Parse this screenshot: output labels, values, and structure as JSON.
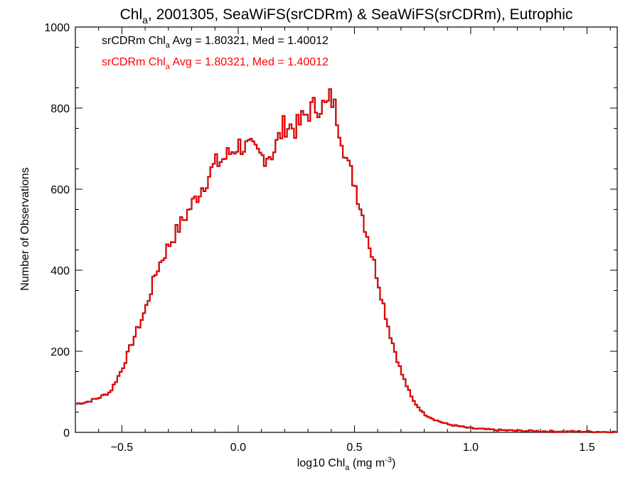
{
  "title": {
    "main": "Chl",
    "sub": "a",
    "rest": ", 2001305, SeaWiFS(srCDRm) & SeaWiFS(srCDRm), Eutrophic"
  },
  "xlabel": {
    "pre": "log10 Chl",
    "sub": "a",
    "post": " (mg m",
    "sup": "-3",
    "end": ")"
  },
  "ylabel": "Number of Observations",
  "legend": [
    {
      "pre": "srCDRm Chl",
      "sub": "a",
      "post": " Avg = 1.80321, Med = 1.40012",
      "color": "#000000"
    },
    {
      "pre": "srCDRm Chl",
      "sub": "a",
      "post": " Avg = 1.80321, Med = 1.40012",
      "color": "#ff0000"
    }
  ],
  "chart_data": {
    "type": "line",
    "style": "step histogram",
    "xlim": [
      -0.7,
      1.63
    ],
    "ylim": [
      0,
      1000
    ],
    "x_ticks": [
      "−0.5",
      "0.0",
      "0.5",
      "1.0",
      "1.5"
    ],
    "x_tick_values": [
      -0.5,
      0.0,
      0.5,
      1.0,
      1.5
    ],
    "y_ticks": [
      "0",
      "200",
      "400",
      "600",
      "800",
      "1000"
    ],
    "y_tick_values": [
      0,
      200,
      400,
      600,
      800,
      1000
    ],
    "grid": false,
    "legend_placement": "top-left",
    "series": [
      {
        "color": "#000000",
        "x": [
          -0.7,
          -0.65,
          -0.6,
          -0.55,
          -0.5,
          -0.45,
          -0.4,
          -0.35,
          -0.3,
          -0.25,
          -0.2,
          -0.15,
          -0.1,
          -0.05,
          0.0,
          0.05,
          0.1,
          0.15,
          0.2,
          0.25,
          0.3,
          0.35,
          0.38,
          0.4,
          0.42,
          0.45,
          0.47,
          0.5,
          0.55,
          0.6,
          0.65,
          0.7,
          0.75,
          0.8,
          0.85,
          0.9,
          0.95,
          1.0,
          1.1,
          1.2,
          1.3,
          1.4,
          1.5,
          1.6
        ],
        "y": [
          70,
          75,
          85,
          100,
          155,
          230,
          300,
          400,
          460,
          510,
          560,
          610,
          660,
          680,
          710,
          700,
          680,
          690,
          760,
          750,
          790,
          810,
          800,
          830,
          790,
          720,
          660,
          620,
          500,
          380,
          250,
          150,
          80,
          45,
          30,
          20,
          15,
          10,
          6,
          4,
          3,
          2,
          2,
          1
        ]
      },
      {
        "color": "#ff0000",
        "x": [
          -0.7,
          -0.65,
          -0.6,
          -0.55,
          -0.5,
          -0.45,
          -0.4,
          -0.35,
          -0.3,
          -0.25,
          -0.2,
          -0.15,
          -0.1,
          -0.05,
          0.0,
          0.05,
          0.1,
          0.15,
          0.2,
          0.25,
          0.3,
          0.35,
          0.38,
          0.4,
          0.42,
          0.45,
          0.47,
          0.5,
          0.55,
          0.6,
          0.65,
          0.7,
          0.75,
          0.8,
          0.85,
          0.9,
          0.95,
          1.0,
          1.1,
          1.2,
          1.3,
          1.4,
          1.5,
          1.6
        ],
        "y": [
          70,
          75,
          85,
          100,
          155,
          230,
          300,
          400,
          460,
          510,
          560,
          610,
          660,
          680,
          710,
          700,
          680,
          690,
          760,
          750,
          790,
          810,
          800,
          830,
          790,
          720,
          660,
          620,
          500,
          380,
          250,
          150,
          80,
          45,
          30,
          20,
          15,
          10,
          6,
          4,
          3,
          2,
          2,
          1
        ]
      }
    ]
  }
}
